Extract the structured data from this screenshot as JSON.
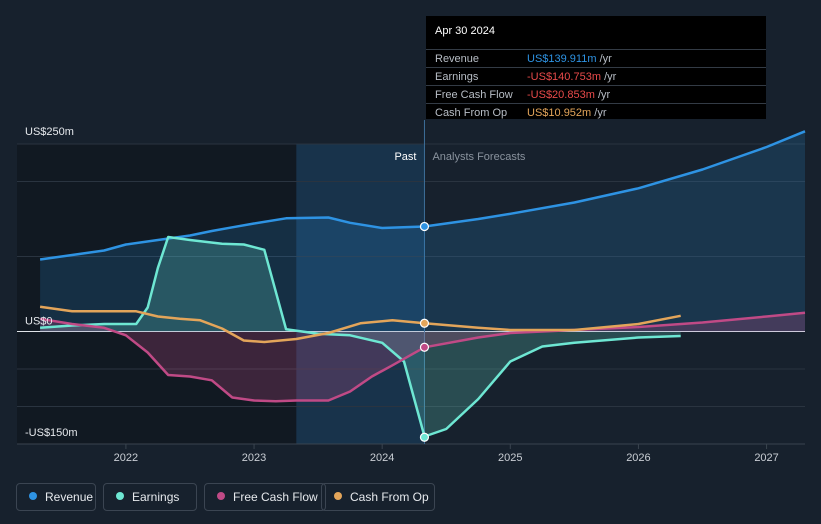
{
  "colors": {
    "background": "#17212d",
    "revenue": "#2e93e3",
    "earnings": "#6ee7d3",
    "free_cash_flow": "#c04a86",
    "cash_from_op": "#e3a55a",
    "past_text": "#ffffff",
    "forecast_text": "#8a939e"
  },
  "tooltip": {
    "date": "Apr 30 2024",
    "rows": [
      {
        "label": "Revenue",
        "value": "US$139.911m",
        "unit": "/yr",
        "color": "#2e93e3"
      },
      {
        "label": "Earnings",
        "value": "-US$140.753m",
        "unit": "/yr",
        "color": "#e84a4a"
      },
      {
        "label": "Free Cash Flow",
        "value": "-US$20.853m",
        "unit": "/yr",
        "color": "#e84a4a"
      },
      {
        "label": "Cash From Op",
        "value": "US$10.952m",
        "unit": "/yr",
        "color": "#e3a55a"
      }
    ]
  },
  "legend": [
    {
      "label": "Revenue",
      "color": "#2e93e3"
    },
    {
      "label": "Earnings",
      "color": "#6ee7d3"
    },
    {
      "label": "Free Cash Flow",
      "color": "#c04a86"
    },
    {
      "label": "Cash From Op",
      "color": "#e3a55a"
    }
  ],
  "chart_data": {
    "type": "line",
    "y_tick_labels": [
      "US$250m",
      "US$0",
      "-US$150m"
    ],
    "ylim": [
      -150,
      250
    ],
    "xlim": [
      2021.15,
      2027.3
    ],
    "x_ticks": [
      2022,
      2023,
      2024,
      2025,
      2026,
      2027
    ],
    "x_tick_labels": [
      "2022",
      "2023",
      "2024",
      "2025",
      "2026",
      "2027"
    ],
    "past_label": "Past",
    "forecast_label": "Analysts Forecasts",
    "past_shade_start": 2023.33,
    "divider_x": 2024.33,
    "series": [
      {
        "name": "Revenue",
        "key": "revenue",
        "x": [
          2021.33,
          2021.58,
          2021.83,
          2022.0,
          2022.25,
          2022.5,
          2022.67,
          2022.83,
          2023.0,
          2023.25,
          2023.58,
          2023.75,
          2024.0,
          2024.33,
          2024.75,
          2025.0,
          2025.5,
          2026.0,
          2026.5,
          2027.0,
          2027.3
        ],
        "y": [
          96,
          102,
          108,
          116,
          122,
          128,
          134,
          139,
          144,
          151,
          152,
          145,
          138,
          140,
          150,
          157,
          172,
          191,
          216,
          246,
          267
        ]
      },
      {
        "name": "Earnings",
        "key": "earnings",
        "x": [
          2021.33,
          2021.58,
          2021.83,
          2022.08,
          2022.17,
          2022.25,
          2022.33,
          2022.5,
          2022.75,
          2022.92,
          2023.08,
          2023.25,
          2023.5,
          2023.75,
          2024.0,
          2024.17,
          2024.33,
          2024.5,
          2024.75,
          2025.0,
          2025.25,
          2025.5,
          2026.0,
          2026.33
        ],
        "y": [
          5,
          8,
          10,
          10,
          32,
          85,
          126,
          122,
          117,
          116,
          109,
          3,
          -3,
          -5,
          -15,
          -40,
          -140,
          -130,
          -90,
          -40,
          -20,
          -15,
          -8,
          -6
        ]
      },
      {
        "name": "Free Cash Flow",
        "key": "free_cash_flow",
        "x": [
          2021.33,
          2021.58,
          2021.83,
          2022.0,
          2022.17,
          2022.33,
          2022.5,
          2022.67,
          2022.83,
          2023.0,
          2023.17,
          2023.33,
          2023.58,
          2023.75,
          2023.92,
          2024.08,
          2024.33,
          2024.75,
          2025.0,
          2025.5,
          2026.0,
          2026.5,
          2027.0,
          2027.3
        ],
        "y": [
          17,
          10,
          5,
          -5,
          -28,
          -58,
          -60,
          -65,
          -88,
          -92,
          -93,
          -92,
          -92,
          -80,
          -60,
          -45,
          -21,
          -8,
          -2,
          2,
          6,
          12,
          20,
          25
        ]
      },
      {
        "name": "Cash From Op",
        "key": "cash_from_op",
        "x": [
          2021.33,
          2021.58,
          2021.83,
          2022.08,
          2022.25,
          2022.42,
          2022.58,
          2022.75,
          2022.92,
          2023.08,
          2023.33,
          2023.58,
          2023.83,
          2024.08,
          2024.33,
          2024.75,
          2025.0,
          2025.5,
          2026.0,
          2026.33
        ],
        "y": [
          33,
          27,
          27,
          27,
          20,
          17,
          15,
          4,
          -12,
          -14,
          -10,
          -2,
          11,
          15,
          11,
          5,
          2,
          2,
          10,
          21
        ]
      }
    ],
    "markers_at": 2024.33,
    "marker_values": {
      "revenue": 140,
      "earnings": -141,
      "free_cash_flow": -21,
      "cash_from_op": 11
    }
  }
}
